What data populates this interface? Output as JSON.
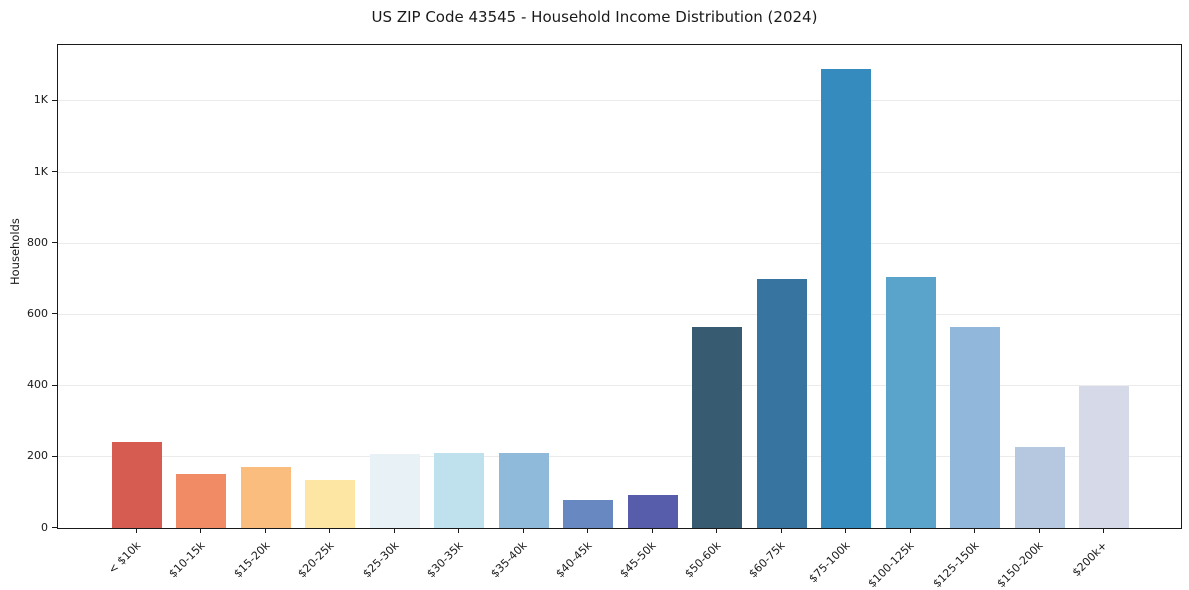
{
  "chart_data": {
    "type": "bar",
    "title": "US ZIP Code 43545 - Household Income Distribution (2024)",
    "xlabel": "",
    "ylabel": "Households",
    "categories": [
      "< $10k",
      "$10-15k",
      "$15-20k",
      "$20-25k",
      "$25-30k",
      "$30-35k",
      "$35-40k",
      "$40-45k",
      "$45-50k",
      "$50-60k",
      "$60-75k",
      "$75-100k",
      "$100-125k",
      "$125-150k",
      "$150-200k",
      "$200k+"
    ],
    "values": [
      242,
      153,
      171,
      135,
      208,
      212,
      211,
      78,
      93,
      565,
      700,
      1291,
      704,
      565,
      228,
      400
    ],
    "bar_colors": [
      "#d65c52",
      "#f18b66",
      "#fbbd7e",
      "#fde5a3",
      "#e7f1f6",
      "#bfe0ed",
      "#90bada",
      "#6788c1",
      "#575cab",
      "#375c71",
      "#37749f",
      "#368bbe",
      "#5aa3cb",
      "#91b8da",
      "#b5c8df",
      "#d6d9e7"
    ],
    "ylim": [
      0,
      1357
    ],
    "yticks": [
      {
        "value": 0,
        "label": "0"
      },
      {
        "value": 200,
        "label": "200"
      },
      {
        "value": 400,
        "label": "400"
      },
      {
        "value": 600,
        "label": "600"
      },
      {
        "value": 800,
        "label": "800"
      },
      {
        "value": 1000,
        "label": "1K"
      },
      {
        "value": 1200,
        "label": "1K"
      }
    ],
    "grid": "horizontal",
    "grid_color": "#ebebeb",
    "legend": "none",
    "background_color": "#ffffff",
    "text_color": "#1a1a1a"
  }
}
